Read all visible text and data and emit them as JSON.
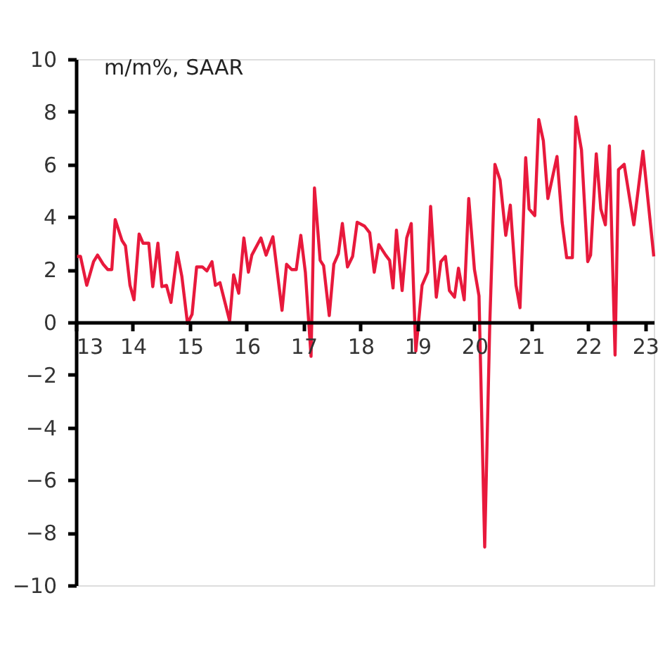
{
  "chart_data": {
    "type": "line",
    "ylabel": "m/m%, SAAR",
    "xlim": [
      13,
      23.15
    ],
    "xticks": [
      13,
      14,
      15,
      16,
      17,
      18,
      19,
      20,
      21,
      22,
      23
    ],
    "ylim": [
      -10,
      10
    ],
    "yticks": [
      -10,
      -8,
      -6,
      -4,
      -2,
      0,
      2,
      4,
      6,
      8,
      10
    ],
    "grid": false,
    "marker": "none",
    "line_style": "solid",
    "series": [
      {
        "color": "#e8193c",
        "x": [
          13.02,
          13.08,
          13.19,
          13.31,
          13.38,
          13.48,
          13.56,
          13.63,
          13.69,
          13.81,
          13.87,
          13.95,
          14.02,
          14.11,
          14.18,
          14.28,
          14.35,
          14.44,
          14.51,
          14.59,
          14.67,
          14.78,
          14.86,
          14.96,
          15.04,
          15.12,
          15.22,
          15.3,
          15.39,
          15.45,
          15.53,
          15.7,
          15.77,
          15.86,
          15.95,
          16.03,
          16.09,
          16.25,
          16.34,
          16.46,
          16.62,
          16.7,
          16.79,
          16.87,
          16.95,
          17.03,
          17.13,
          17.19,
          17.29,
          17.35,
          17.45,
          17.53,
          17.61,
          17.68,
          17.77,
          17.86,
          17.94,
          18.07,
          18.16,
          18.24,
          18.32,
          18.44,
          18.51,
          18.57,
          18.63,
          18.73,
          18.81,
          18.89,
          18.97,
          19.08,
          19.18,
          19.23,
          19.33,
          19.41,
          19.49,
          19.56,
          19.65,
          19.72,
          19.82,
          19.9,
          20.0,
          20.08,
          20.18,
          20.27,
          20.36,
          20.45,
          20.55,
          20.63,
          20.73,
          20.8,
          20.9,
          20.96,
          21.06,
          21.13,
          21.21,
          21.29,
          21.45,
          21.54,
          21.62,
          21.72,
          21.78,
          21.88,
          21.99,
          22.04,
          22.14,
          22.22,
          22.3,
          22.37,
          22.47,
          22.53,
          22.63,
          22.8,
          22.96,
          23.15
        ],
        "values": [
          2.5,
          2.5,
          1.4,
          2.3,
          2.55,
          2.2,
          2.0,
          2.0,
          3.9,
          3.1,
          2.9,
          1.4,
          0.85,
          3.35,
          3.0,
          3.0,
          1.35,
          3.0,
          1.35,
          1.4,
          0.75,
          2.65,
          1.75,
          -0.05,
          0.3,
          2.1,
          2.1,
          1.95,
          2.3,
          1.4,
          1.5,
          0.05,
          1.8,
          1.1,
          3.2,
          1.9,
          2.55,
          3.2,
          2.55,
          3.25,
          0.45,
          2.2,
          2.0,
          2.0,
          3.3,
          1.9,
          -1.3,
          5.1,
          2.35,
          2.15,
          0.25,
          2.2,
          2.6,
          3.75,
          2.1,
          2.5,
          3.8,
          3.65,
          3.4,
          1.9,
          2.95,
          2.55,
          2.35,
          1.3,
          3.5,
          1.2,
          3.2,
          3.75,
          -1.1,
          1.4,
          1.9,
          4.4,
          0.95,
          2.3,
          2.5,
          1.2,
          0.95,
          2.05,
          0.85,
          4.7,
          2.0,
          1.0,
          -8.55,
          0.0,
          6.0,
          5.4,
          3.3,
          4.45,
          1.4,
          0.55,
          6.25,
          4.3,
          4.05,
          7.7,
          6.9,
          4.7,
          6.3,
          3.8,
          2.45,
          2.45,
          7.8,
          6.55,
          2.3,
          2.55,
          6.4,
          4.3,
          3.7,
          6.7,
          -1.25,
          5.8,
          6.0,
          3.7,
          6.5,
          2.5
        ]
      }
    ]
  }
}
